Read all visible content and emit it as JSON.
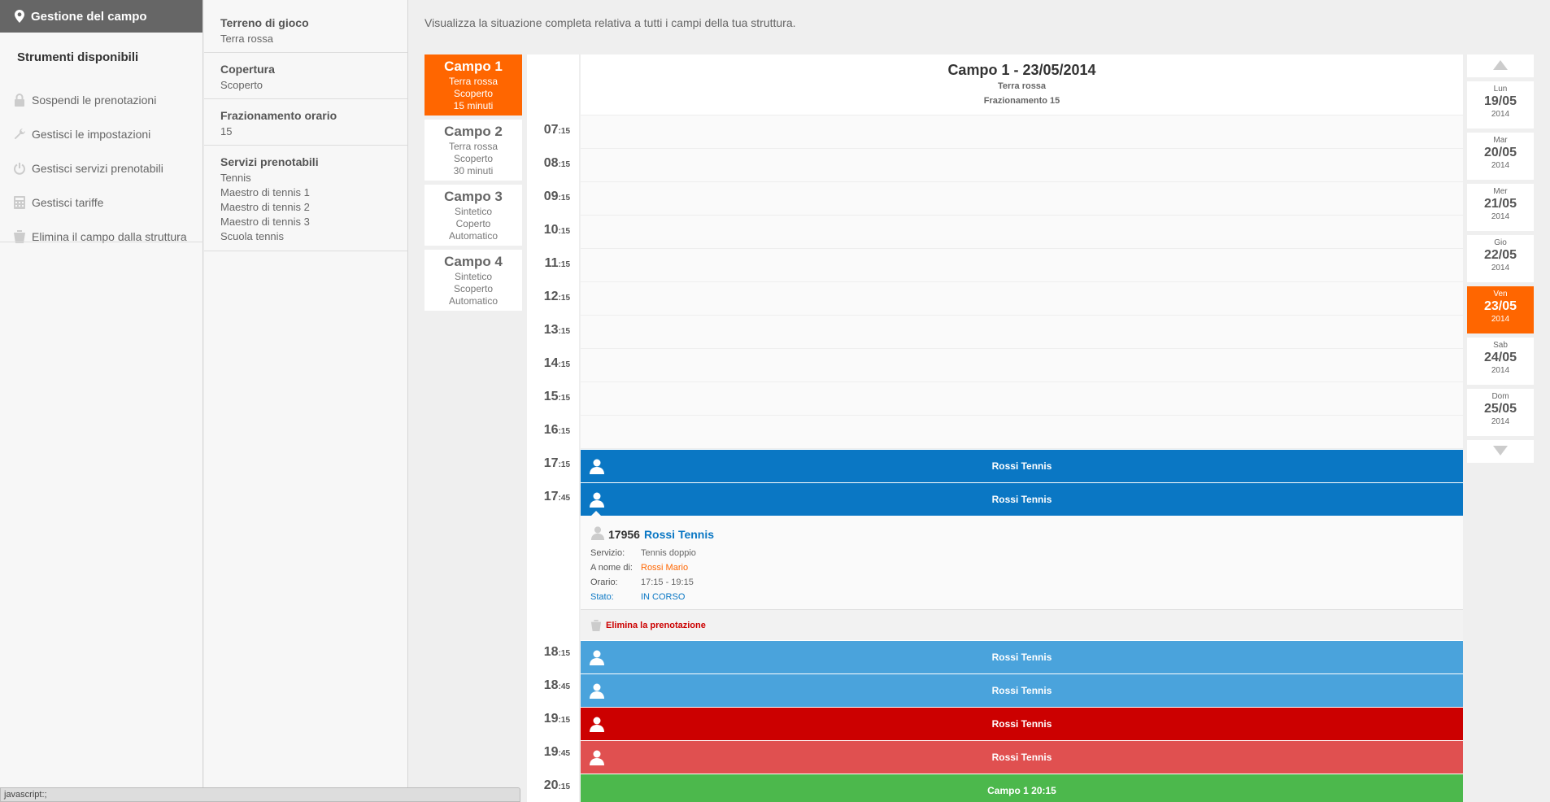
{
  "sidebar": {
    "header": "Gestione del campo",
    "tools_title": "Strumenti disponibili",
    "items": [
      {
        "label": "Sospendi le prenotazioni",
        "icon": "lock-icon"
      },
      {
        "label": "Gestisci le impostazioni",
        "icon": "wrench-icon"
      },
      {
        "label": "Gestisci servizi prenotabili",
        "icon": "power-icon"
      },
      {
        "label": "Gestisci tariffe",
        "icon": "calculator-icon"
      },
      {
        "label": "Elimina il campo dalla struttura",
        "icon": "trash-icon"
      }
    ]
  },
  "info": {
    "terreno_label": "Terreno di gioco",
    "terreno_value": "Terra rossa",
    "copertura_label": "Copertura",
    "copertura_value": "Scoperto",
    "frazionamento_label": "Frazionamento orario",
    "frazionamento_value": "15",
    "servizi_label": "Servizi prenotabili",
    "servizi": [
      "Tennis",
      "Maestro di tennis 1",
      "Maestro di tennis 2",
      "Maestro di tennis 3",
      "Scuola tennis"
    ]
  },
  "intro": "Visualizza la situazione completa relativa a tutti i campi della tua struttura.",
  "courts": [
    {
      "name": "Campo 1",
      "l1": "Terra rossa",
      "l2": "Scoperto",
      "l3": "15 minuti"
    },
    {
      "name": "Campo 2",
      "l1": "Terra rossa",
      "l2": "Scoperto",
      "l3": "30 minuti"
    },
    {
      "name": "Campo 3",
      "l1": "Sintetico",
      "l2": "Coperto",
      "l3": "Automatico"
    },
    {
      "name": "Campo 4",
      "l1": "Sintetico",
      "l2": "Scoperto",
      "l3": "Automatico"
    }
  ],
  "schedule": {
    "title": "Campo 1 - 23/05/2014",
    "sub1": "Terra rossa",
    "sub2": "Frazionamento 15",
    "times": [
      {
        "h": "07",
        "m": ":15"
      },
      {
        "h": "08",
        "m": ":15"
      },
      {
        "h": "09",
        "m": ":15"
      },
      {
        "h": "10",
        "m": ":15"
      },
      {
        "h": "11",
        "m": ":15"
      },
      {
        "h": "12",
        "m": ":15"
      },
      {
        "h": "13",
        "m": ":15"
      },
      {
        "h": "14",
        "m": ":15"
      },
      {
        "h": "15",
        "m": ":15"
      },
      {
        "h": "16",
        "m": ":15"
      },
      {
        "h": "17",
        "m": ":15"
      },
      {
        "h": "17",
        "m": ":45"
      },
      {
        "h": "18",
        "m": ":15"
      },
      {
        "h": "18",
        "m": ":45"
      },
      {
        "h": "19",
        "m": ":15"
      },
      {
        "h": "19",
        "m": ":45"
      },
      {
        "h": "20",
        "m": ":15"
      }
    ],
    "bookings": [
      {
        "label": "Rossi Tennis",
        "color": "#0a77c4"
      },
      {
        "label": "Rossi Tennis",
        "color": "#0a77c4"
      },
      {
        "label": "Rossi Tennis",
        "color": "#4aa3dc"
      },
      {
        "label": "Rossi Tennis",
        "color": "#4aa3dc"
      },
      {
        "label": "Rossi Tennis",
        "color": "#cc0000"
      },
      {
        "label": "Rossi Tennis",
        "color": "#e05050"
      },
      {
        "label": "Campo 1 20:15",
        "color": "#4cb84c"
      }
    ]
  },
  "details": {
    "number": "17956",
    "name": "Rossi Tennis",
    "servizio_k": "Servizio:",
    "servizio_v": "Tennis doppio",
    "nome_k": "A nome di:",
    "nome_v": "Rossi Mario",
    "orario_k": "Orario:",
    "orario_v": "17:15 - 19:15",
    "stato_k": "Stato:",
    "stato_v": "IN CORSO",
    "delete": "Elimina la prenotazione"
  },
  "days": [
    {
      "n": "Lun",
      "d": "19/05",
      "y": "2014"
    },
    {
      "n": "Mar",
      "d": "20/05",
      "y": "2014"
    },
    {
      "n": "Mer",
      "d": "21/05",
      "y": "2014"
    },
    {
      "n": "Gio",
      "d": "22/05",
      "y": "2014"
    },
    {
      "n": "Ven",
      "d": "23/05",
      "y": "2014"
    },
    {
      "n": "Sab",
      "d": "24/05",
      "y": "2014"
    },
    {
      "n": "Dom",
      "d": "25/05",
      "y": "2014"
    }
  ],
  "status_bar": "javascript:;",
  "colors": {
    "accent": "#ff6600",
    "blue": "#0a77c4"
  }
}
